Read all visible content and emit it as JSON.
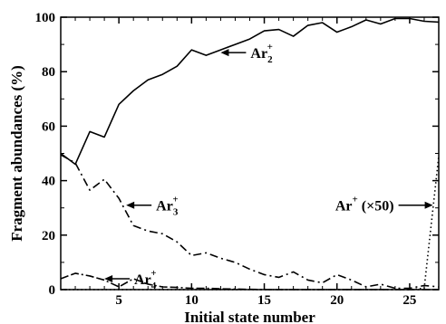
{
  "chart_data": {
    "type": "line",
    "xlabel": "Initial state number",
    "ylabel": "Fragment abundances (%)",
    "xlim": [
      1,
      27
    ],
    "ylim": [
      0,
      100
    ],
    "xticks": [
      "5",
      "10",
      "15",
      "20",
      "25"
    ],
    "yticks": [
      "0",
      "20",
      "40",
      "60",
      "80",
      "100"
    ],
    "grid": false,
    "x": [
      1,
      2,
      3,
      4,
      5,
      6,
      7,
      8,
      9,
      10,
      11,
      12,
      13,
      14,
      15,
      16,
      17,
      18,
      19,
      20,
      21,
      22,
      23,
      24,
      25,
      26,
      27
    ],
    "series": [
      {
        "name": "Ar2+",
        "style": "solid",
        "values": [
          50,
          46,
          58,
          56,
          68,
          73,
          77,
          79,
          82,
          88,
          86,
          88,
          90,
          92,
          95,
          95.5,
          93,
          97,
          98,
          94.5,
          96.5,
          99,
          97.5,
          99.5,
          99.5,
          98.5,
          98.2
        ]
      },
      {
        "name": "Ar3+",
        "style": "dash-dot",
        "values": [
          49.5,
          46.5,
          36.5,
          40.5,
          33.5,
          23.5,
          21.5,
          20.5,
          17.5,
          12.5,
          13.5,
          11.5,
          10,
          7.5,
          5.5,
          4.5,
          6.5,
          3.5,
          2.5,
          5.5,
          3.5,
          1,
          2,
          0.5,
          0.5,
          1.5,
          1
        ]
      },
      {
        "name": "Ar4+",
        "style": "dash-dash-dot",
        "values": [
          4,
          6,
          5,
          3.5,
          1,
          4,
          2,
          1,
          0.8,
          0.5,
          0.5,
          0.3,
          0.2,
          0.1,
          0,
          0,
          0,
          0,
          0,
          0,
          0,
          0,
          0,
          0,
          0,
          0,
          0
        ]
      },
      {
        "name": "Ar+ (x50)",
        "style": "dotted",
        "values": [
          0,
          0,
          0,
          0,
          0,
          0,
          0,
          0,
          0,
          0,
          0,
          0,
          0,
          0,
          0,
          0,
          0,
          0,
          0,
          0,
          0,
          0,
          0,
          0,
          0,
          0.5,
          49
        ]
      }
    ],
    "annotations": [
      {
        "base": "Ar",
        "sub": "2",
        "sup": "+",
        "suffix": "",
        "x": 12,
        "y": 87,
        "arrow_dir": "left"
      },
      {
        "base": "Ar",
        "sub": "3",
        "sup": "+",
        "suffix": "",
        "x": 5.5,
        "y": 31,
        "arrow_dir": "left"
      },
      {
        "base": "Ar",
        "sub": "4",
        "sup": "+",
        "suffix": "",
        "x": 4.0,
        "y": 4,
        "arrow_dir": "left"
      },
      {
        "base": "Ar",
        "sub": "",
        "sup": "+",
        "suffix": " (×50)",
        "x": 26.6,
        "y": 31,
        "arrow_dir": "right"
      }
    ]
  }
}
